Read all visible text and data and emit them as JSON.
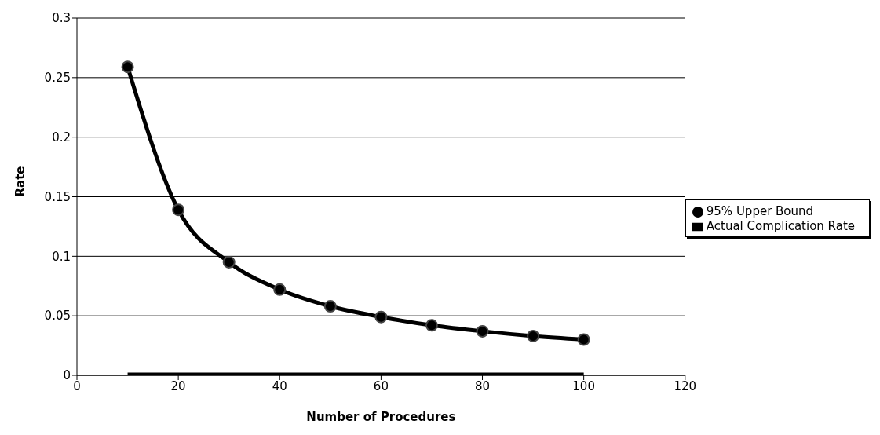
{
  "chart_data": {
    "type": "line",
    "xlabel": "Number of Procedures",
    "ylabel": "Rate",
    "x": [
      10,
      20,
      30,
      40,
      50,
      60,
      70,
      80,
      90,
      100
    ],
    "series": [
      {
        "name": "95% Upper Bound",
        "color": "#000000",
        "values": [
          0.259,
          0.139,
          0.095,
          0.072,
          0.058,
          0.049,
          0.042,
          0.037,
          0.033,
          0.03
        ],
        "marker": "circle"
      },
      {
        "name": "Actual Complication Rate",
        "color": "#000000",
        "values": [
          0,
          0,
          0,
          0,
          0,
          0,
          0,
          0,
          0,
          0
        ],
        "marker": "none"
      }
    ],
    "xlim": [
      0,
      120
    ],
    "xticks": [
      0,
      20,
      40,
      60,
      80,
      100,
      120
    ],
    "ylim": [
      0,
      0.3
    ],
    "yticks": [
      0,
      0.05,
      0.1,
      0.15,
      0.2,
      0.25,
      0.3
    ],
    "grid": "y",
    "legend": "right",
    "line_style": "solid"
  }
}
